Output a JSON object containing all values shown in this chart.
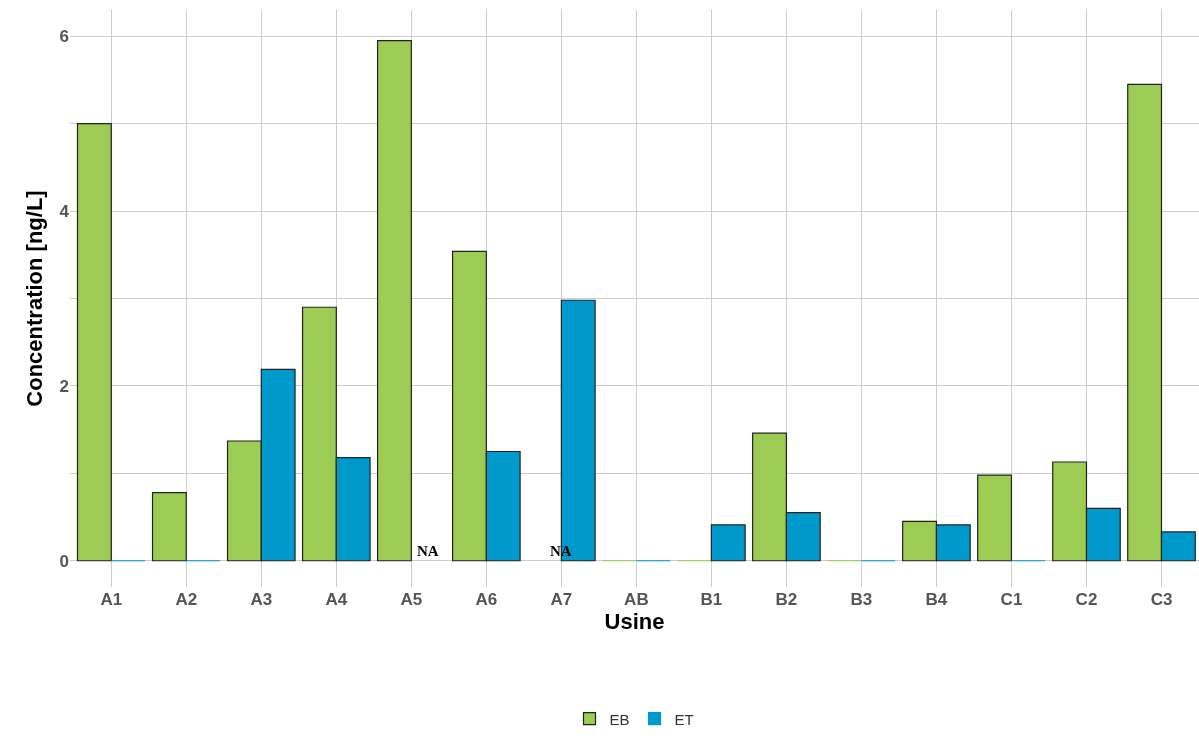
{
  "chart_data": {
    "type": "bar",
    "xlabel": "Usine",
    "ylabel": "Concentration [ng/L]",
    "categories": [
      "A1",
      "A2",
      "A3",
      "A4",
      "A5",
      "A6",
      "A7",
      "AB",
      "B1",
      "B2",
      "B3",
      "B4",
      "C1",
      "C2",
      "C3"
    ],
    "series": [
      {
        "name": "EB",
        "color": "#9ccc53",
        "values": [
          5.0,
          0.78,
          1.37,
          2.9,
          5.95,
          3.54,
          null,
          0,
          0,
          1.46,
          0,
          0.45,
          0.98,
          1.13,
          5.45
        ]
      },
      {
        "name": "ET",
        "color": "#0099cc",
        "values": [
          0,
          0,
          2.19,
          1.18,
          null,
          1.25,
          2.98,
          0,
          0.41,
          0.55,
          0,
          0.41,
          0,
          0.6,
          0.33
        ]
      }
    ],
    "ylim": [
      -0.3,
      6.3
    ],
    "yticks": [
      0,
      {
        "value": 1,
        "label": null
      },
      2,
      {
        "value": 3,
        "label": null
      },
      4,
      {
        "value": 5,
        "label": null
      },
      6
    ],
    "grid": true,
    "legend": "bottom",
    "annotations": [
      {
        "text": "NA",
        "x": "A5",
        "y": 0
      },
      {
        "text": "NA",
        "x": "A7",
        "y": 0
      }
    ]
  }
}
